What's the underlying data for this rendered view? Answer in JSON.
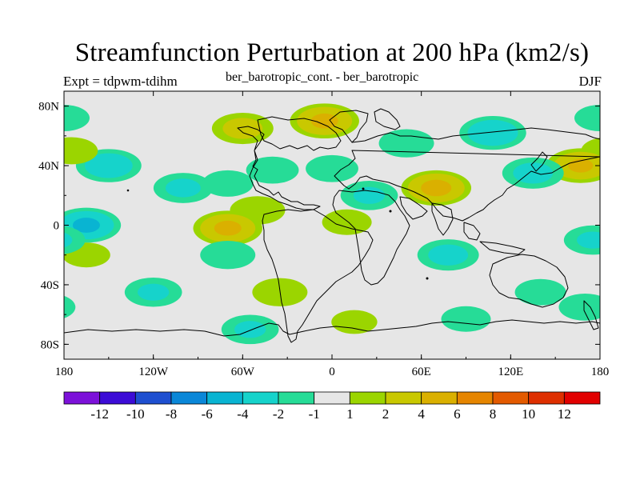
{
  "title": "Streamfunction Perturbation at 200 hPa (km2/s)",
  "left_string": "Expt = tdpwm-tdihm",
  "center_string": "ber_barotropic_cont. - ber_barotropic",
  "right_string": "DJF",
  "x_ticks": [
    {
      "lon": -180,
      "label": "180"
    },
    {
      "lon": -120,
      "label": "120W"
    },
    {
      "lon": -60,
      "label": "60W"
    },
    {
      "lon": 0,
      "label": "0"
    },
    {
      "lon": 60,
      "label": "60E"
    },
    {
      "lon": 120,
      "label": "120E"
    },
    {
      "lon": 180,
      "label": "180"
    }
  ],
  "y_ticks": [
    {
      "lat": 80,
      "label": "80N"
    },
    {
      "lat": 40,
      "label": "40N"
    },
    {
      "lat": 0,
      "label": "0"
    },
    {
      "lat": -40,
      "label": "40S"
    },
    {
      "lat": -80,
      "label": "80S"
    }
  ],
  "colorbar": {
    "colors": [
      "#7c11d9",
      "#3c0bd6",
      "#1e4fd0",
      "#0a87d8",
      "#09b4d2",
      "#16d3cb",
      "#26dc97",
      "#e6e6e6",
      "#9bd500",
      "#c9c800",
      "#dab000",
      "#e58500",
      "#e35a00",
      "#de2f00",
      "#e10000"
    ],
    "labels": [
      "-12",
      "-10",
      "-8",
      "-6",
      "-4",
      "-2",
      "-1",
      "1",
      "2",
      "4",
      "6",
      "8",
      "10",
      "12"
    ]
  },
  "chart_data": {
    "type": "map-contour",
    "title": "Streamfunction Perturbation at 200 hPa (km2/s)",
    "projection": "cylindrical equidistant",
    "lon_range": [
      -180,
      180
    ],
    "lat_range": [
      -90,
      90
    ],
    "levels": [
      -12,
      -10,
      -8,
      -6,
      -4,
      -2,
      -1,
      1,
      2,
      4,
      6,
      8,
      10,
      12
    ],
    "background_color": "#e6e6e6",
    "anomalies": [
      {
        "lon": -60,
        "lat": 65,
        "value": 2.5
      },
      {
        "lon": -5,
        "lat": 70,
        "value": 4.2
      },
      {
        "lon": -150,
        "lat": 40,
        "value": -3.2
      },
      {
        "lon": -175,
        "lat": 50,
        "value": 1.6
      },
      {
        "lon": -165,
        "lat": 0,
        "value": -4.2
      },
      {
        "lon": -100,
        "lat": 25,
        "value": -2.2
      },
      {
        "lon": -70,
        "lat": 28,
        "value": -1.5
      },
      {
        "lon": -50,
        "lat": 10,
        "value": 1.8
      },
      {
        "lon": -70,
        "lat": -2,
        "value": 4.2
      },
      {
        "lon": 10,
        "lat": 2,
        "value": 1.4
      },
      {
        "lon": -40,
        "lat": 37,
        "value": -1.6
      },
      {
        "lon": 0,
        "lat": 38,
        "value": -1.6
      },
      {
        "lon": 25,
        "lat": 20,
        "value": -2.0
      },
      {
        "lon": 70,
        "lat": 25,
        "value": 4.5
      },
      {
        "lon": 50,
        "lat": 55,
        "value": -1.8
      },
      {
        "lon": 108,
        "lat": 62,
        "value": -3.5
      },
      {
        "lon": 167,
        "lat": 40,
        "value": 4.0
      },
      {
        "lon": 135,
        "lat": 35,
        "value": -2.5
      },
      {
        "lon": -180,
        "lat": 72,
        "value": -1.5
      },
      {
        "lon": -165,
        "lat": -20,
        "value": 1.3
      },
      {
        "lon": -70,
        "lat": -20,
        "value": -1.8
      },
      {
        "lon": -120,
        "lat": -45,
        "value": -2.0
      },
      {
        "lon": -35,
        "lat": -45,
        "value": 1.8
      },
      {
        "lon": -55,
        "lat": -70,
        "value": -2.0
      },
      {
        "lon": 78,
        "lat": -20,
        "value": -2.5
      },
      {
        "lon": 140,
        "lat": -45,
        "value": -1.5
      },
      {
        "lon": 170,
        "lat": -55,
        "value": -1.6
      },
      {
        "lon": 175,
        "lat": -10,
        "value": -2.0
      },
      {
        "lon": 90,
        "lat": -63,
        "value": -1.4
      },
      {
        "lon": 15,
        "lat": -65,
        "value": 1.2
      }
    ]
  }
}
